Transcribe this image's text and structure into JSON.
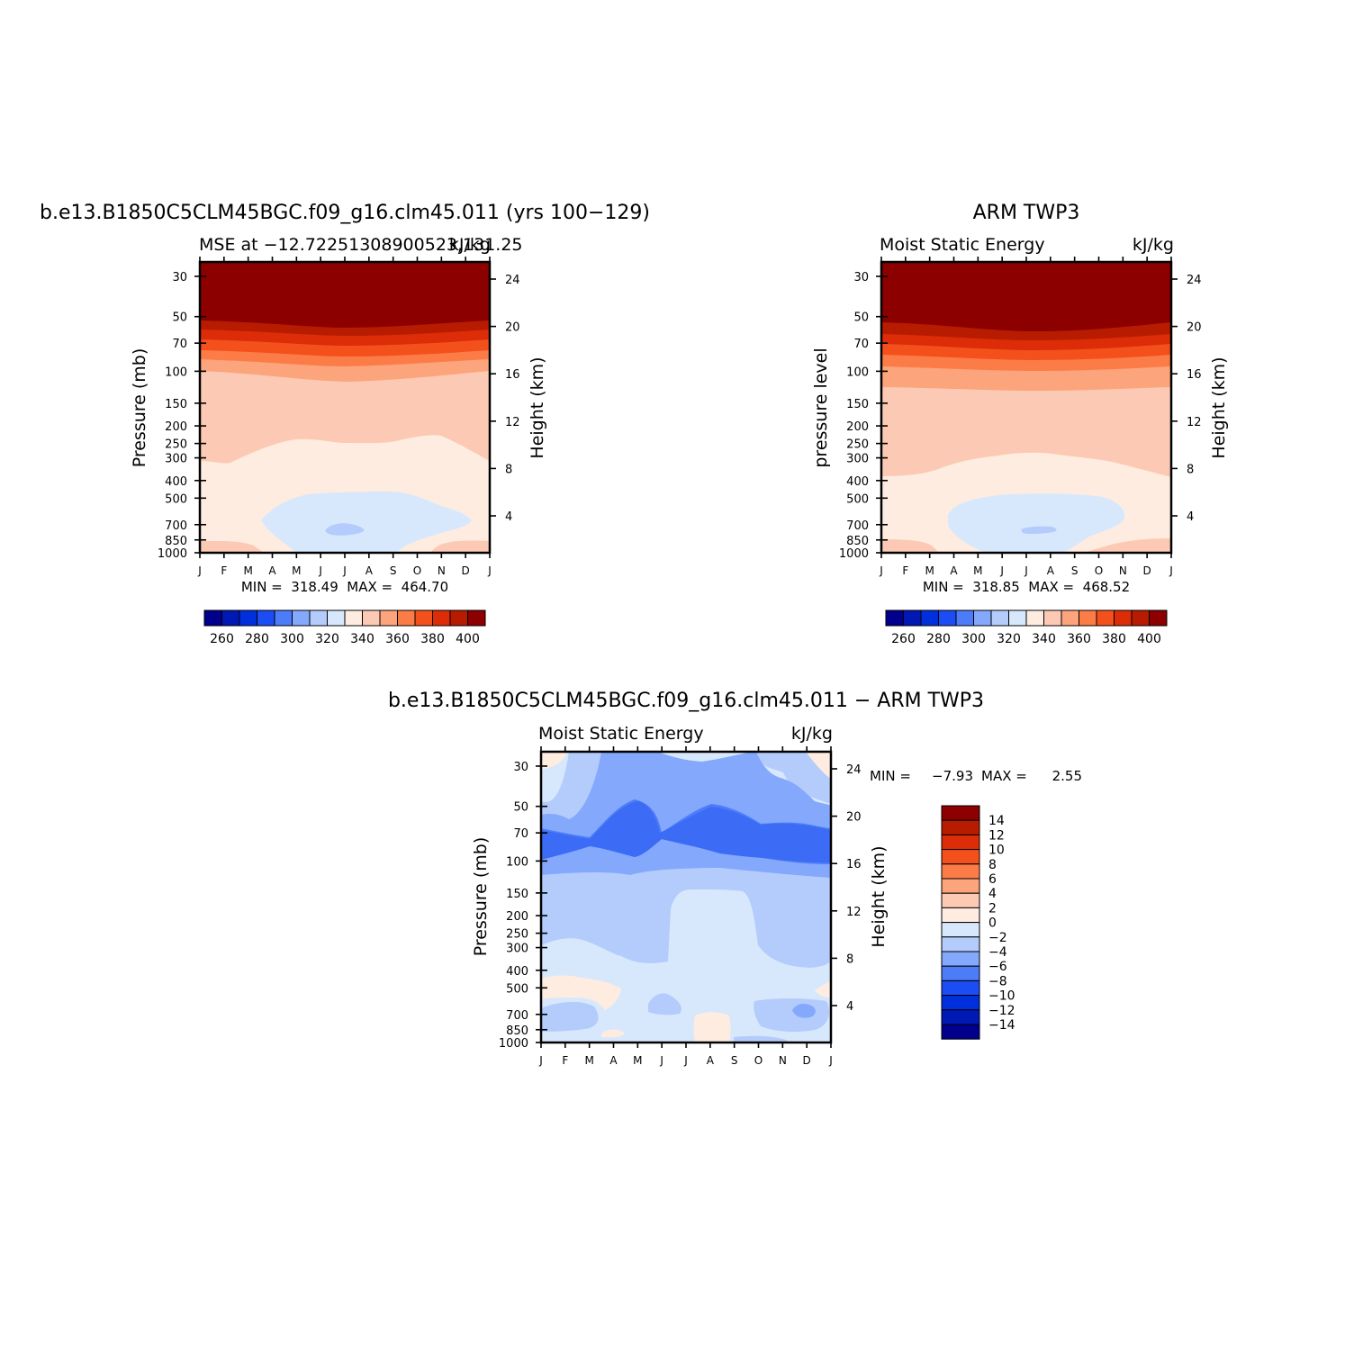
{
  "palette": {
    "diverging": [
      "#00008c",
      "#0018b4",
      "#0030dc",
      "#1c4cf4",
      "#4c7cf8",
      "#84a8fc",
      "#b4ccfc",
      "#d8e8fc",
      "#feece0",
      "#fccab4",
      "#fca47c",
      "#fc7c48",
      "#f4501c",
      "#dc2c08",
      "#b81c00",
      "#8c0000"
    ],
    "full_field_levels": [
      "250",
      "260",
      "270",
      "280",
      "290",
      "300",
      "310",
      "320",
      "330",
      "340",
      "350",
      "360",
      "370",
      "380",
      "390",
      "400"
    ],
    "diff_levels": [
      "-14",
      "-12",
      "-10",
      "-8",
      "-6",
      "-4",
      "-2",
      "0",
      "2",
      "4",
      "6",
      "8",
      "10",
      "12",
      "14"
    ]
  },
  "chart_data": [
    {
      "type": "heatmap",
      "title": "b.e13.B1850C5CLM45BGC.f09_g16.clm45.011 (yrs 100−129)",
      "subtitle_left": "MSE at −12.72251308900523,131.25",
      "subtitle_right": "kJ/kg",
      "ylabel": "Pressure (mb)",
      "y2label": "Height (km)",
      "x_ticks": [
        "J",
        "F",
        "M",
        "A",
        "M",
        "J",
        "J",
        "A",
        "S",
        "O",
        "N",
        "D",
        "J"
      ],
      "y_ticks": [
        "30",
        "50",
        "70",
        "100",
        "150",
        "200",
        "250",
        "300",
        "400",
        "500",
        "700",
        "850",
        "1000"
      ],
      "y_ticks_values": [
        30,
        50,
        70,
        100,
        150,
        200,
        250,
        300,
        400,
        500,
        700,
        850,
        1000
      ],
      "y2_ticks": [
        "24",
        "20",
        "16",
        "12",
        "8",
        "4"
      ],
      "ylim": [
        1000,
        25
      ],
      "stats": "MIN =  318.49  MAX =  464.70",
      "colorbar_labels": [
        "260",
        "280",
        "300",
        "320",
        "340",
        "360",
        "380",
        "400"
      ],
      "z_min": 318.49,
      "z_max": 464.7
    },
    {
      "type": "heatmap",
      "title": "ARM TWP3",
      "subtitle_left": "Moist Static Energy",
      "subtitle_right": "kJ/kg",
      "ylabel": "pressure level",
      "y2label": "Height (km)",
      "x_ticks": [
        "J",
        "F",
        "M",
        "A",
        "M",
        "J",
        "J",
        "A",
        "S",
        "O",
        "N",
        "D",
        "J"
      ],
      "y_ticks": [
        "30",
        "50",
        "70",
        "100",
        "150",
        "200",
        "250",
        "300",
        "400",
        "500",
        "700",
        "850",
        "1000"
      ],
      "y_ticks_values": [
        30,
        50,
        70,
        100,
        150,
        200,
        250,
        300,
        400,
        500,
        700,
        850,
        1000
      ],
      "y2_ticks": [
        "24",
        "20",
        "16",
        "12",
        "8",
        "4"
      ],
      "ylim": [
        1000,
        25
      ],
      "stats": "MIN =  318.85  MAX =  468.52",
      "colorbar_labels": [
        "260",
        "280",
        "300",
        "320",
        "340",
        "360",
        "380",
        "400"
      ],
      "z_min": 318.85,
      "z_max": 468.52
    },
    {
      "type": "heatmap",
      "title": "b.e13.B1850C5CLM45BGC.f09_g16.clm45.011 − ARM TWP3",
      "subtitle_left": "Moist Static Energy",
      "subtitle_right": "kJ/kg",
      "ylabel": "Pressure (mb)",
      "y2label": "Height (km)",
      "x_ticks": [
        "J",
        "F",
        "M",
        "A",
        "M",
        "J",
        "J",
        "A",
        "S",
        "O",
        "N",
        "D",
        "J"
      ],
      "y_ticks": [
        "30",
        "50",
        "70",
        "100",
        "150",
        "200",
        "250",
        "300",
        "400",
        "500",
        "700",
        "850",
        "1000"
      ],
      "y_ticks_values": [
        30,
        50,
        70,
        100,
        150,
        200,
        250,
        300,
        400,
        500,
        700,
        850,
        1000
      ],
      "y2_ticks": [
        "24",
        "20",
        "16",
        "12",
        "8",
        "4"
      ],
      "ylim": [
        1000,
        25
      ],
      "stats_min_label": "MIN =",
      "stats_min": "−7.93",
      "stats_max_label": "MAX =",
      "stats_max": "2.55",
      "colorbar_labels": [
        "14",
        "12",
        "10",
        "8",
        "6",
        "4",
        "2",
        "0",
        "−2",
        "−4",
        "−6",
        "−8",
        "−10",
        "−12",
        "−14"
      ],
      "z_min": -7.93,
      "z_max": 2.55
    }
  ]
}
